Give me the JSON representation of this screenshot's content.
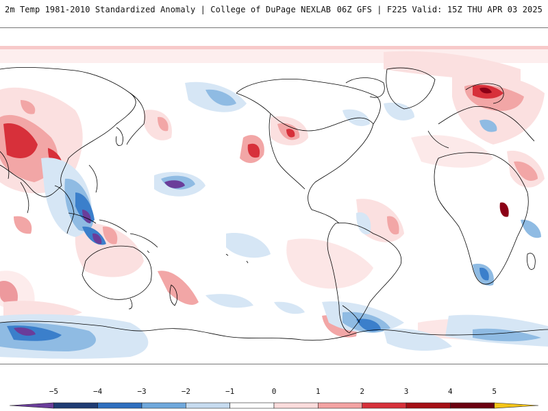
{
  "header": {
    "left": "2m Temp 1981-2010 Standardized Anomaly | College of DuPage NEXLAB",
    "right": "06Z GFS | F225 Valid: 15Z THU APR 03 2025"
  },
  "colorbar": {
    "ticks": [
      "−5",
      "−4",
      "−3",
      "−2",
      "−1",
      "0",
      "1",
      "2",
      "3",
      "4",
      "5"
    ],
    "colors": [
      "#6a3d9a",
      "#1f3b73",
      "#2e6fbf",
      "#6fa8dc",
      "#c6dbef",
      "#ffffff",
      "#fcdcdc",
      "#f4a3a3",
      "#d7303a",
      "#a50f15",
      "#6b0010",
      "#f5c518"
    ]
  },
  "map": {
    "colors": {
      "ocean": "#ffffff",
      "coast": "#000000",
      "warm_light": "#fbe0e0",
      "warm_mid": "#f2a6a6",
      "warm_strong": "#d7303a",
      "warm_extreme": "#8b0016",
      "cold_light": "#d6e6f5",
      "cold_mid": "#8fbbe3",
      "cold_strong": "#3b7fcb",
      "cold_extreme": "#6a3d9a"
    }
  }
}
